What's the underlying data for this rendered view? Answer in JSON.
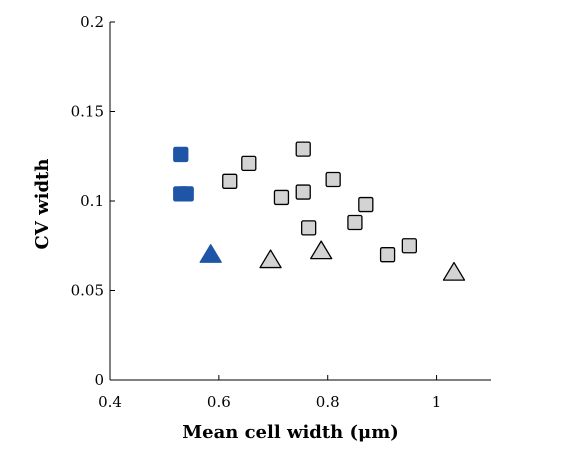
{
  "chart_data": {
    "type": "scatter",
    "title": "",
    "xlabel": "Mean cell width (μm)",
    "ylabel": "CV width",
    "xlim": [
      0.4,
      1.1
    ],
    "ylim": [
      0,
      0.2
    ],
    "xticks": [
      0.4,
      0.6,
      0.8,
      1.0
    ],
    "xtick_labels": [
      "0.4",
      "0.6",
      "0.8",
      "1"
    ],
    "yticks": [
      0,
      0.05,
      0.1,
      0.15,
      0.2
    ],
    "ytick_labels": [
      "0",
      "0.05",
      "0.1",
      "0.15",
      "0.2"
    ],
    "grid": false,
    "legend": "none",
    "series": [
      {
        "marker": "square",
        "color": "#1f55a6",
        "edge_color": "#1f55a6",
        "points": [
          {
            "x": 0.53,
            "y": 0.126
          },
          {
            "x": 0.53,
            "y": 0.104
          },
          {
            "x": 0.54,
            "y": 0.104
          }
        ]
      },
      {
        "marker": "triangle",
        "color": "#1f55a6",
        "edge_color": "#1f55a6",
        "points": [
          {
            "x": 0.585,
            "y": 0.07
          }
        ]
      },
      {
        "marker": "square",
        "color": "#d3d3d3",
        "edge_color": "#000000",
        "points": [
          {
            "x": 0.62,
            "y": 0.111
          },
          {
            "x": 0.655,
            "y": 0.121
          },
          {
            "x": 0.715,
            "y": 0.102
          },
          {
            "x": 0.755,
            "y": 0.129
          },
          {
            "x": 0.755,
            "y": 0.105
          },
          {
            "x": 0.765,
            "y": 0.085
          },
          {
            "x": 0.81,
            "y": 0.112
          },
          {
            "x": 0.85,
            "y": 0.088
          },
          {
            "x": 0.87,
            "y": 0.098
          },
          {
            "x": 0.91,
            "y": 0.07
          },
          {
            "x": 0.95,
            "y": 0.075
          }
        ]
      },
      {
        "marker": "triangle",
        "color": "#d3d3d3",
        "edge_color": "#000000",
        "points": [
          {
            "x": 0.695,
            "y": 0.067
          },
          {
            "x": 0.788,
            "y": 0.072
          },
          {
            "x": 1.032,
            "y": 0.06
          }
        ]
      }
    ]
  }
}
